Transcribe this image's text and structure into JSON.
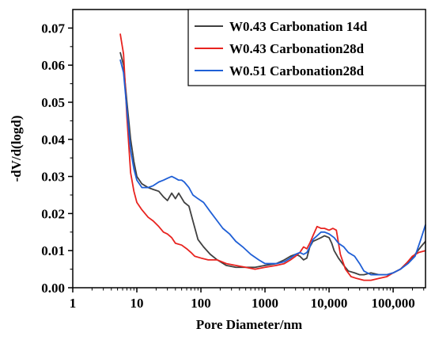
{
  "chart_data": {
    "type": "line",
    "title": "",
    "xlabel": "Pore Diameter/nm",
    "ylabel": "-dV/d(logd)",
    "xscale": "log",
    "xlim": [
      1,
      320000
    ],
    "ylim": [
      0,
      0.075
    ],
    "xticks": [
      1,
      10,
      100,
      1000,
      10000,
      100000
    ],
    "xtick_labels": [
      "1",
      "10",
      "100",
      "1000",
      "10,000",
      "100,000"
    ],
    "yticks": [
      0.0,
      0.01,
      0.02,
      0.03,
      0.04,
      0.05,
      0.06,
      0.07
    ],
    "ytick_labels": [
      "0.00",
      "0.01",
      "0.02",
      "0.03",
      "0.04",
      "0.05",
      "0.06",
      "0.07"
    ],
    "grid": false,
    "legend_position": "top-right",
    "series": [
      {
        "name": "W0.43 Carbonation 14d",
        "color": "#404040",
        "x": [
          5.5,
          6.2,
          7,
          8,
          9,
          10,
          12,
          15,
          18,
          22,
          26,
          30,
          35,
          40,
          45,
          55,
          65,
          75,
          90,
          110,
          140,
          180,
          250,
          350,
          500,
          700,
          1000,
          1500,
          2000,
          2500,
          3000,
          3500,
          4000,
          4500,
          5000,
          5600,
          6500,
          7500,
          8500,
          10000,
          11000,
          12000,
          14000,
          17000,
          20000,
          25000,
          30000,
          35000,
          45000,
          60000,
          80000,
          100000,
          130000,
          170000,
          220000,
          270000,
          320000
        ],
        "values": [
          0.0635,
          0.06,
          0.05,
          0.04,
          0.034,
          0.03,
          0.028,
          0.027,
          0.0265,
          0.026,
          0.0245,
          0.0235,
          0.0255,
          0.024,
          0.0255,
          0.023,
          0.022,
          0.018,
          0.013,
          0.011,
          0.009,
          0.0075,
          0.006,
          0.0055,
          0.0055,
          0.0055,
          0.006,
          0.0065,
          0.0075,
          0.0085,
          0.009,
          0.0085,
          0.0075,
          0.008,
          0.011,
          0.0125,
          0.013,
          0.0135,
          0.014,
          0.0135,
          0.012,
          0.01,
          0.008,
          0.006,
          0.0045,
          0.004,
          0.0035,
          0.0035,
          0.004,
          0.0035,
          0.0035,
          0.004,
          0.005,
          0.007,
          0.009,
          0.011,
          0.0125
        ]
      },
      {
        "name": "W0.43 Carbonation28d",
        "color": "#e8231f",
        "x": [
          5.5,
          6.2,
          7,
          8,
          9,
          10,
          12,
          15,
          18,
          22,
          26,
          30,
          35,
          40,
          50,
          60,
          70,
          80,
          100,
          130,
          180,
          250,
          350,
          500,
          700,
          1000,
          1500,
          2000,
          2500,
          3000,
          3500,
          4000,
          4500,
          5000,
          5600,
          6500,
          7500,
          8500,
          10000,
          11500,
          13000,
          15000,
          18000,
          22000,
          27000,
          35000,
          45000,
          60000,
          80000,
          100000,
          130000,
          160000,
          200000,
          250000,
          320000
        ],
        "values": [
          0.0685,
          0.063,
          0.046,
          0.031,
          0.026,
          0.023,
          0.021,
          0.019,
          0.018,
          0.0165,
          0.015,
          0.0145,
          0.0135,
          0.012,
          0.0115,
          0.0105,
          0.0095,
          0.0085,
          0.008,
          0.0075,
          0.0075,
          0.0065,
          0.006,
          0.0055,
          0.005,
          0.0055,
          0.006,
          0.0065,
          0.0075,
          0.0085,
          0.0095,
          0.011,
          0.0105,
          0.012,
          0.014,
          0.0165,
          0.016,
          0.016,
          0.0155,
          0.016,
          0.0155,
          0.009,
          0.005,
          0.003,
          0.0025,
          0.002,
          0.002,
          0.0025,
          0.003,
          0.004,
          0.005,
          0.0065,
          0.0085,
          0.0095,
          0.01
        ]
      },
      {
        "name": "W0.51 Carbonation28d",
        "color": "#1f5fd6",
        "x": [
          5.5,
          6.2,
          7,
          8,
          9,
          10,
          12,
          15,
          18,
          22,
          26,
          30,
          35,
          40,
          45,
          50,
          55,
          65,
          75,
          90,
          110,
          140,
          180,
          220,
          280,
          350,
          450,
          600,
          800,
          1000,
          1500,
          2000,
          2500,
          3000,
          3500,
          4000,
          4500,
          5000,
          5600,
          6500,
          7500,
          8500,
          10000,
          12000,
          14000,
          17000,
          20000,
          25000,
          30000,
          35000,
          45000,
          60000,
          80000,
          100000,
          130000,
          170000,
          220000,
          270000,
          320000
        ],
        "values": [
          0.0615,
          0.058,
          0.048,
          0.037,
          0.032,
          0.029,
          0.027,
          0.027,
          0.0275,
          0.0285,
          0.029,
          0.0295,
          0.03,
          0.0295,
          0.029,
          0.029,
          0.0285,
          0.027,
          0.025,
          0.024,
          0.023,
          0.0205,
          0.018,
          0.016,
          0.0145,
          0.0125,
          0.011,
          0.009,
          0.0075,
          0.0065,
          0.0065,
          0.007,
          0.008,
          0.009,
          0.0095,
          0.009,
          0.0095,
          0.011,
          0.013,
          0.014,
          0.015,
          0.015,
          0.0145,
          0.0135,
          0.012,
          0.011,
          0.0095,
          0.0085,
          0.0065,
          0.0045,
          0.0035,
          0.0035,
          0.0035,
          0.004,
          0.005,
          0.0065,
          0.0085,
          0.013,
          0.017
        ]
      }
    ]
  }
}
